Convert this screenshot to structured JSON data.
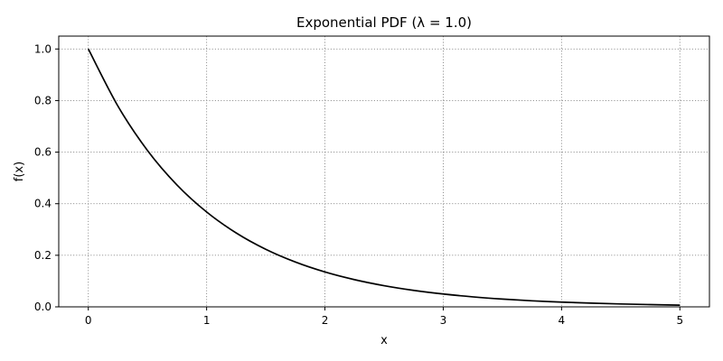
{
  "chart_data": {
    "type": "line",
    "title": "Exponential PDF (λ = 1.0)",
    "xlabel": "x",
    "ylabel": "f(x)",
    "xlim": [
      -0.25,
      5.25
    ],
    "ylim": [
      0,
      1.05
    ],
    "xticks": [
      0,
      1,
      2,
      3,
      4,
      5
    ],
    "xtick_labels": [
      "0",
      "1",
      "2",
      "3",
      "4",
      "5"
    ],
    "yticks": [
      0,
      0.2,
      0.4,
      0.6,
      0.8,
      1.0
    ],
    "ytick_labels": [
      "0.0",
      "0.2",
      "0.4",
      "0.6",
      "0.8",
      "1.0"
    ],
    "grid": true,
    "grid_style": "dotted",
    "line_color": "#000000",
    "series": [
      {
        "x": [
          0,
          0.25,
          0.5,
          0.75,
          1,
          1.25,
          1.5,
          1.75,
          2,
          2.25,
          2.5,
          2.75,
          3,
          3.25,
          3.5,
          3.75,
          4,
          4.25,
          4.5,
          4.75,
          5
        ],
        "values": [
          1.0,
          0.7788,
          0.6065,
          0.4724,
          0.3679,
          0.2865,
          0.2231,
          0.1738,
          0.1353,
          0.1054,
          0.0821,
          0.0639,
          0.0498,
          0.0388,
          0.0302,
          0.0235,
          0.0183,
          0.0143,
          0.0111,
          0.0087,
          0.0067
        ]
      }
    ]
  }
}
